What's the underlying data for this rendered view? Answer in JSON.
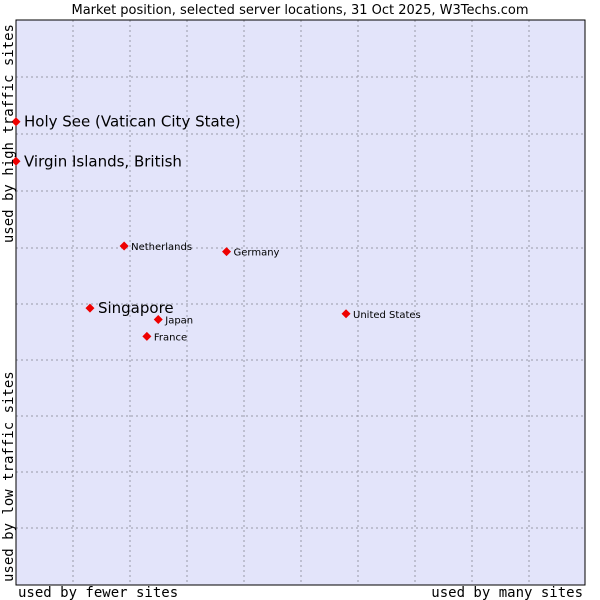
{
  "chart_data": {
    "type": "scatter",
    "title": "Market position, selected server locations, 31 Oct 2025, W3Techs.com",
    "xlabel_left": "used by fewer sites",
    "xlabel_right": "used by many sites",
    "ylabel_bottom": "used by low traffic sites",
    "ylabel_top": "used by high traffic sites",
    "xlim": [
      0,
      10
    ],
    "ylim": [
      0,
      10
    ],
    "grid": true,
    "colors": {
      "plot_background": "#e3e4fa",
      "grid": "#9a9aa8",
      "border": "#000000",
      "marker": "#ee0000"
    },
    "points": [
      {
        "name": "Holy See (Vatican City State)",
        "x": 0.0,
        "y": 8.2,
        "highlight": true
      },
      {
        "name": "Virgin Islands, British",
        "x": 0.0,
        "y": 7.5,
        "highlight": true
      },
      {
        "name": "Netherlands",
        "x": 1.9,
        "y": 6.0,
        "highlight": false
      },
      {
        "name": "Germany",
        "x": 3.7,
        "y": 5.9,
        "highlight": false
      },
      {
        "name": "Singapore",
        "x": 1.3,
        "y": 4.9,
        "highlight": true
      },
      {
        "name": "Japan",
        "x": 2.5,
        "y": 4.7,
        "highlight": false
      },
      {
        "name": "France",
        "x": 2.3,
        "y": 4.4,
        "highlight": false
      },
      {
        "name": "United States",
        "x": 5.8,
        "y": 4.8,
        "highlight": false
      }
    ]
  }
}
